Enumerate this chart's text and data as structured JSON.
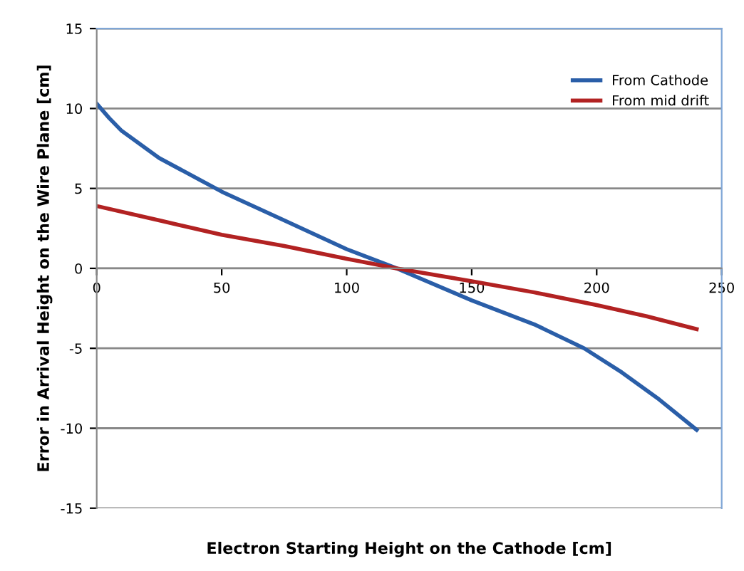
{
  "chart_data": {
    "type": "line",
    "xlabel": "Electron Starting Height on the Cathode [cm]",
    "ylabel": "Error in Arrival Height on the Wire Plane [cm]",
    "xlim": [
      0,
      250
    ],
    "xticks": [
      0,
      50,
      100,
      150,
      200,
      250
    ],
    "ylim": [
      -15,
      15
    ],
    "yticks": [
      -15,
      -10,
      -5,
      0,
      5,
      10,
      15
    ],
    "grid": "y",
    "legend": "top right",
    "line_style": "solid",
    "marker": "none",
    "series": [
      {
        "name": "From Cathode",
        "color": "#2a5ea8",
        "x": [
          0,
          5,
          10,
          25,
          50,
          75,
          100,
          120,
          150,
          175,
          195,
          210,
          225,
          240
        ],
        "values": [
          10.3,
          9.4,
          8.6,
          6.9,
          4.8,
          3.0,
          1.2,
          0,
          -2.0,
          -3.5,
          -5.0,
          -6.5,
          -8.2,
          -10.1
        ]
      },
      {
        "name": "From mid drift",
        "color": "#b22222",
        "x": [
          0,
          25,
          50,
          75,
          100,
          120,
          150,
          175,
          200,
          220,
          240
        ],
        "values": [
          3.9,
          3.0,
          2.1,
          1.4,
          0.6,
          0,
          -0.8,
          -1.5,
          -2.3,
          -3.0,
          -3.8
        ]
      }
    ]
  }
}
